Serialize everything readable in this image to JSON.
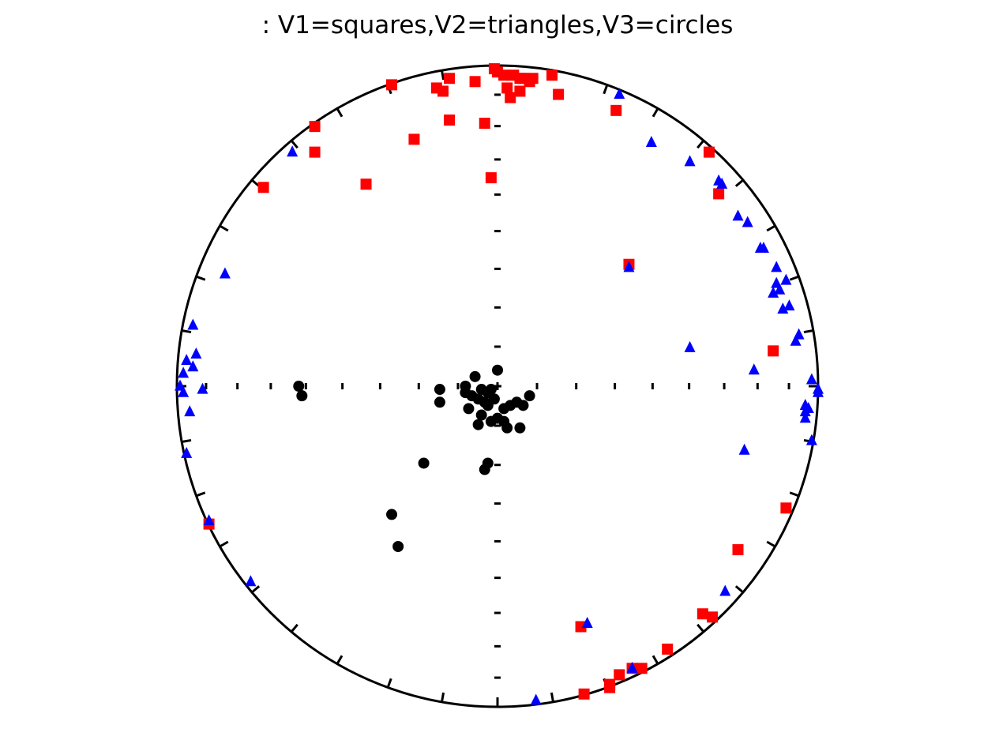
{
  "chart_data": {
    "type": "scatter",
    "projection": "equal-area stereonet",
    "title": ": V1=squares,V2=triangles,V3=circles",
    "xlabel": "",
    "ylabel": "",
    "xlim": [
      -1,
      1
    ],
    "ylim": [
      -1,
      1
    ],
    "grid": false,
    "legend": "none",
    "colors": {
      "V1": "#ff0000",
      "V2": "#0000ff",
      "V3": "#000000",
      "frame": "#000000"
    },
    "series": [
      {
        "marker": "square",
        "color": "#ff0000",
        "points": [
          [
            -0.01,
            0.99
          ],
          [
            0.0,
            0.98
          ],
          [
            0.02,
            0.97
          ],
          [
            0.05,
            0.97
          ],
          [
            0.07,
            0.96
          ],
          [
            0.08,
            0.96
          ],
          [
            0.1,
            0.95
          ],
          [
            0.11,
            0.96
          ],
          [
            0.17,
            0.97
          ],
          [
            0.19,
            0.91
          ],
          [
            0.03,
            0.93
          ],
          [
            0.07,
            0.92
          ],
          [
            0.04,
            0.9
          ],
          [
            -0.07,
            0.95
          ],
          [
            -0.15,
            0.96
          ],
          [
            -0.17,
            0.92
          ],
          [
            -0.19,
            0.93
          ],
          [
            -0.33,
            0.94
          ],
          [
            -0.15,
            0.83
          ],
          [
            -0.04,
            0.82
          ],
          [
            -0.26,
            0.77
          ],
          [
            -0.57,
            0.81
          ],
          [
            -0.57,
            0.73
          ],
          [
            -0.41,
            0.63
          ],
          [
            -0.73,
            0.62
          ],
          [
            -0.02,
            0.65
          ],
          [
            0.37,
            0.86
          ],
          [
            0.66,
            0.73
          ],
          [
            0.69,
            0.6
          ],
          [
            0.41,
            0.38
          ],
          [
            0.86,
            0.11
          ],
          [
            0.9,
            -0.38
          ],
          [
            0.75,
            -0.51
          ],
          [
            0.64,
            -0.71
          ],
          [
            0.67,
            -0.72
          ],
          [
            0.53,
            -0.82
          ],
          [
            0.45,
            -0.88
          ],
          [
            0.42,
            -0.88
          ],
          [
            0.38,
            -0.9
          ],
          [
            0.35,
            -0.93
          ],
          [
            0.35,
            -0.94
          ],
          [
            0.27,
            -0.96
          ],
          [
            0.26,
            -0.75
          ],
          [
            -0.9,
            -0.43
          ]
        ]
      },
      {
        "marker": "triangle",
        "color": "#0000ff",
        "points": [
          [
            0.38,
            0.91
          ],
          [
            0.48,
            0.76
          ],
          [
            0.6,
            0.7
          ],
          [
            0.69,
            0.64
          ],
          [
            0.7,
            0.63
          ],
          [
            0.75,
            0.53
          ],
          [
            0.78,
            0.51
          ],
          [
            0.82,
            0.43
          ],
          [
            0.83,
            0.43
          ],
          [
            0.87,
            0.37
          ],
          [
            0.9,
            0.33
          ],
          [
            0.87,
            0.32
          ],
          [
            0.88,
            0.3
          ],
          [
            0.86,
            0.29
          ],
          [
            0.91,
            0.25
          ],
          [
            0.89,
            0.24
          ],
          [
            0.94,
            0.16
          ],
          [
            0.93,
            0.14
          ],
          [
            0.6,
            0.12
          ],
          [
            0.8,
            0.05
          ],
          [
            0.41,
            0.37
          ],
          [
            0.98,
            0.02
          ],
          [
            1.0,
            -0.01
          ],
          [
            1.0,
            -0.02
          ],
          [
            0.96,
            -0.06
          ],
          [
            0.97,
            -0.07
          ],
          [
            0.96,
            -0.08
          ],
          [
            0.96,
            -0.1
          ],
          [
            0.98,
            -0.17
          ],
          [
            0.77,
            -0.2
          ],
          [
            0.71,
            -0.64
          ],
          [
            0.28,
            -0.74
          ],
          [
            0.42,
            -0.88
          ],
          [
            0.12,
            -0.98
          ],
          [
            -0.64,
            0.73
          ],
          [
            -0.85,
            0.35
          ],
          [
            -0.95,
            0.19
          ],
          [
            -0.94,
            0.1
          ],
          [
            -0.97,
            0.08
          ],
          [
            -0.95,
            0.06
          ],
          [
            -0.98,
            0.04
          ],
          [
            -0.99,
            0.0
          ],
          [
            -0.92,
            -0.01
          ],
          [
            -0.98,
            -0.02
          ],
          [
            -0.96,
            -0.08
          ],
          [
            -0.97,
            -0.21
          ],
          [
            -0.77,
            -0.61
          ],
          [
            -0.9,
            -0.42
          ]
        ]
      },
      {
        "marker": "circle",
        "color": "#000000",
        "points": [
          [
            0.0,
            0.05
          ],
          [
            -0.07,
            0.03
          ],
          [
            -0.1,
            0.0
          ],
          [
            -0.05,
            -0.01
          ],
          [
            -0.03,
            -0.02
          ],
          [
            -0.02,
            -0.01
          ],
          [
            -0.1,
            -0.02
          ],
          [
            -0.08,
            -0.03
          ],
          [
            -0.06,
            -0.04
          ],
          [
            -0.04,
            -0.05
          ],
          [
            -0.09,
            -0.07
          ],
          [
            -0.05,
            -0.09
          ],
          [
            -0.06,
            -0.12
          ],
          [
            -0.02,
            -0.11
          ],
          [
            0.0,
            -0.1
          ],
          [
            0.02,
            -0.11
          ],
          [
            0.03,
            -0.13
          ],
          [
            0.02,
            -0.07
          ],
          [
            0.04,
            -0.06
          ],
          [
            0.06,
            -0.05
          ],
          [
            0.08,
            -0.06
          ],
          [
            0.1,
            -0.03
          ],
          [
            0.07,
            -0.13
          ],
          [
            -0.01,
            -0.04
          ],
          [
            -0.03,
            -0.06
          ],
          [
            -0.18,
            -0.01
          ],
          [
            -0.18,
            -0.05
          ],
          [
            -0.62,
            0.0
          ],
          [
            -0.61,
            -0.03
          ],
          [
            -0.23,
            -0.24
          ],
          [
            -0.03,
            -0.24
          ],
          [
            -0.04,
            -0.26
          ],
          [
            -0.33,
            -0.4
          ],
          [
            -0.31,
            -0.5
          ]
        ]
      }
    ]
  }
}
